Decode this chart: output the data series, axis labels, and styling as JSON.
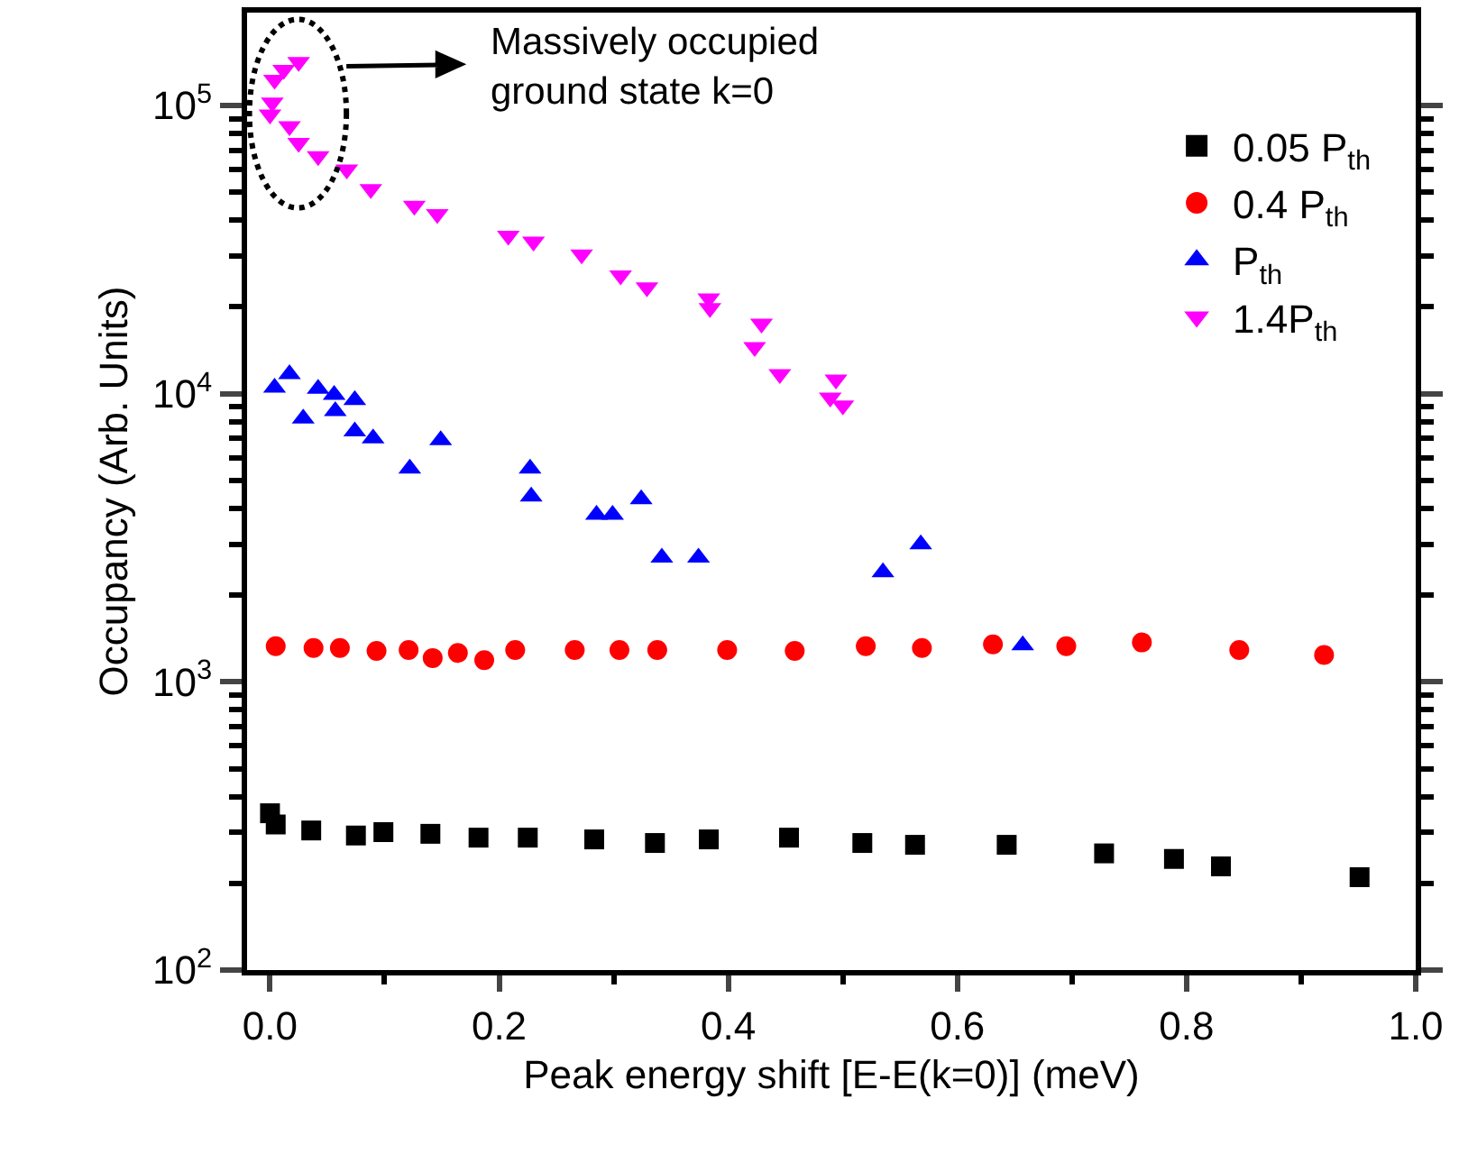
{
  "chart_data": {
    "type": "scatter",
    "xlabel": "Peak energy shift [E-E(k=0)] (meV)",
    "ylabel": "Occupancy (Arb. Units)",
    "log": "y",
    "legend": "top right",
    "xlim": [
      -0.02,
      1.0
    ],
    "ylim": [
      100,
      210000
    ],
    "xticks": [
      {
        "value": 0,
        "label": "0.0"
      },
      {
        "value": 0.1,
        "label": null
      },
      {
        "value": 0.2,
        "label": "0.2"
      },
      {
        "value": 0.3,
        "label": null
      },
      {
        "value": 0.4,
        "label": "0.4"
      },
      {
        "value": 0.5,
        "label": null
      },
      {
        "value": 0.6,
        "label": "0.6"
      },
      {
        "value": 0.7,
        "label": null
      },
      {
        "value": 0.8,
        "label": "0.8"
      },
      {
        "value": 0.9,
        "label": null
      },
      {
        "value": 1.0,
        "label": "1.0"
      }
    ],
    "yticks": [
      {
        "value": 100,
        "label": "10$^{2}$"
      },
      {
        "value": 200,
        "label": null
      },
      {
        "value": 300,
        "label": null
      },
      {
        "value": 400,
        "label": null
      },
      {
        "value": 500,
        "label": null
      },
      {
        "value": 600,
        "label": null
      },
      {
        "value": 700,
        "label": null
      },
      {
        "value": 800,
        "label": null
      },
      {
        "value": 900,
        "label": null
      },
      {
        "value": 1000,
        "label": "10$^{3}$"
      },
      {
        "value": 2000,
        "label": null
      },
      {
        "value": 3000,
        "label": null
      },
      {
        "value": 4000,
        "label": null
      },
      {
        "value": 5000,
        "label": null
      },
      {
        "value": 6000,
        "label": null
      },
      {
        "value": 7000,
        "label": null
      },
      {
        "value": 8000,
        "label": null
      },
      {
        "value": 9000,
        "label": null
      },
      {
        "value": 10000,
        "label": "10$^{4}$"
      },
      {
        "value": 20000,
        "label": null
      },
      {
        "value": 30000,
        "label": null
      },
      {
        "value": 40000,
        "label": null
      },
      {
        "value": 50000,
        "label": null
      },
      {
        "value": 60000,
        "label": null
      },
      {
        "value": 70000,
        "label": null
      },
      {
        "value": 80000,
        "label": null
      },
      {
        "value": 90000,
        "label": null
      },
      {
        "value": 100000,
        "label": "10$^{5}$"
      }
    ],
    "annotations": [
      "Massively occupied\nground state k=0"
    ],
    "series": [
      {
        "name": "0.05 P$_{th}$",
        "color": "#000000",
        "marker": "square",
        "x": [
          0.0,
          0.005,
          0.036,
          0.075,
          0.099,
          0.14,
          0.182,
          0.225,
          0.283,
          0.336,
          0.383,
          0.453,
          0.517,
          0.563,
          0.643,
          0.728,
          0.789,
          0.83,
          0.951
        ],
        "values": [
          350,
          320,
          305,
          293,
          301,
          297,
          288,
          288,
          284,
          276,
          284,
          288,
          276,
          272,
          272,
          254,
          243,
          229,
          210
        ]
      },
      {
        "name": "0.4 P$_{th}$",
        "color": "#ff0000",
        "marker": "circle",
        "x": [
          0.005,
          0.038,
          0.061,
          0.093,
          0.121,
          0.142,
          0.164,
          0.187,
          0.214,
          0.266,
          0.305,
          0.338,
          0.399,
          0.458,
          0.52,
          0.569,
          0.631,
          0.695,
          0.761,
          0.846,
          0.92
        ],
        "values": [
          1330,
          1310,
          1310,
          1280,
          1290,
          1210,
          1260,
          1190,
          1290,
          1290,
          1290,
          1290,
          1290,
          1280,
          1330,
          1310,
          1350,
          1330,
          1370,
          1290,
          1240
        ]
      },
      {
        "name": "P$_{th}$",
        "color": "#0000ff",
        "marker": "triangle-up",
        "x": [
          0.004,
          0.017,
          0.029,
          0.042,
          0.056,
          0.057,
          0.074,
          0.074,
          0.09,
          0.122,
          0.149,
          0.227,
          0.228,
          0.285,
          0.299,
          0.324,
          0.342,
          0.374,
          0.535,
          0.568,
          0.657
        ],
        "values": [
          10500,
          11700,
          8200,
          10400,
          9900,
          8700,
          9500,
          7400,
          7000,
          5500,
          6900,
          5500,
          4400,
          3800,
          3800,
          4300,
          2700,
          2700,
          2400,
          3000,
          1340
        ]
      },
      {
        "name": "1.4P$_{th}$",
        "color": "#ff00ff",
        "marker": "triangle-down",
        "x": [
          0.025,
          0.012,
          0.004,
          0.002,
          0.0,
          0.017,
          0.025,
          0.042,
          0.067,
          0.088,
          0.126,
          0.146,
          0.208,
          0.23,
          0.272,
          0.306,
          0.329,
          0.383,
          0.384,
          0.429,
          0.423,
          0.445,
          0.494,
          0.489,
          0.5
        ],
        "values": [
          141600,
          133000,
          122700,
          102300,
          93000,
          84700,
          74100,
          66700,
          60000,
          51300,
          44900,
          42000,
          35300,
          33700,
          30400,
          25700,
          23400,
          21400,
          19800,
          17500,
          14500,
          11700,
          11200,
          9700,
          9100
        ]
      }
    ]
  }
}
